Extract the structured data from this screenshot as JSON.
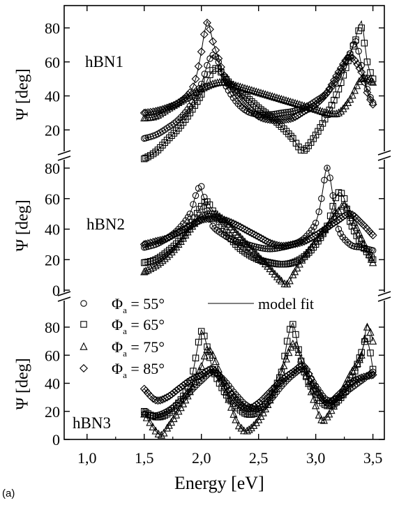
{
  "panel_letter": "(a)",
  "x_axis_label": "Energy [eV]",
  "y_axis_label": "Ψ [deg]",
  "legend": [
    {
      "symbol": "circle",
      "prefix": "Φ",
      "sub": "a",
      "suffix": " = 55°"
    },
    {
      "symbol": "square",
      "prefix": "Φ",
      "sub": "a",
      "suffix": " = 65°"
    },
    {
      "symbol": "triangle",
      "prefix": "Φ",
      "sub": "a",
      "suffix": " = 75°"
    },
    {
      "symbol": "diamond",
      "prefix": "Φ",
      "sub": "a",
      "suffix": " = 85°"
    }
  ],
  "fit_label": "model fit",
  "chart_data": [
    {
      "type": "scatter",
      "panel_label": "hBN1",
      "xlabel": "",
      "ylabel": "Ψ [deg]",
      "xlim": [
        0.8,
        3.6
      ],
      "ylim": [
        0,
        90
      ],
      "yticks": [
        20,
        40,
        60,
        80
      ],
      "series": [
        {
          "name": "Φa = 55°",
          "marker": "circle",
          "x": [
            1.5,
            1.6,
            1.7,
            1.8,
            1.9,
            2.0,
            2.05,
            2.1,
            2.15,
            2.2,
            2.3,
            2.4,
            2.5,
            2.6,
            2.7,
            2.8,
            2.9,
            3.0,
            3.1,
            3.2,
            3.3,
            3.35,
            3.4,
            3.45,
            3.5
          ],
          "y": [
            15,
            17,
            21,
            26,
            34,
            47,
            58,
            64,
            60,
            48,
            37,
            31,
            29,
            29,
            30,
            31,
            33,
            37,
            42,
            52,
            65,
            72,
            58,
            44,
            36
          ]
        },
        {
          "name": "Φa = 65°",
          "marker": "square",
          "x": [
            1.5,
            1.6,
            1.7,
            1.8,
            1.9,
            2.0,
            2.05,
            2.1,
            2.15,
            2.2,
            2.3,
            2.4,
            2.5,
            2.6,
            2.7,
            2.8,
            2.85,
            2.9,
            3.0,
            3.1,
            3.2,
            3.3,
            3.35,
            3.4,
            3.45,
            3.5
          ],
          "y": [
            3,
            7,
            14,
            21,
            30,
            41,
            49,
            55,
            56,
            51,
            44,
            39,
            33,
            28,
            22,
            15,
            10,
            8,
            17,
            29,
            44,
            64,
            73,
            80,
            60,
            50
          ],
          "fit": [
            3,
            7,
            14,
            21,
            30,
            41,
            49,
            55,
            56,
            51,
            44,
            39,
            33,
            28,
            22,
            15,
            10,
            8,
            17,
            29,
            44,
            64,
            74,
            84,
            60,
            49
          ]
        },
        {
          "name": "Φa = 75°",
          "marker": "triangle",
          "x": [
            1.5,
            1.6,
            1.7,
            1.8,
            1.9,
            2.0,
            2.1,
            2.2,
            2.3,
            2.4,
            2.5,
            2.6,
            2.7,
            2.8,
            2.9,
            3.0,
            3.1,
            3.2,
            3.3,
            3.4,
            3.5
          ],
          "y": [
            27,
            28,
            32,
            36,
            40,
            44,
            47,
            48,
            46,
            44,
            42,
            40,
            38,
            36,
            34,
            32,
            30,
            30,
            38,
            50,
            48
          ]
        },
        {
          "name": "Φa = 85°",
          "marker": "diamond",
          "x": [
            1.5,
            1.6,
            1.7,
            1.8,
            1.9,
            1.95,
            2.0,
            2.05,
            2.1,
            2.15,
            2.2,
            2.3,
            2.4,
            2.5,
            2.6,
            2.7,
            2.8,
            2.9,
            3.0,
            3.1,
            3.2,
            3.3,
            3.4,
            3.45,
            3.5
          ],
          "y": [
            30,
            31,
            33,
            36,
            42,
            50,
            66,
            83,
            72,
            62,
            52,
            42,
            34,
            28,
            26,
            26,
            27,
            31,
            35,
            42,
            54,
            63,
            54,
            42,
            35
          ],
          "fit": [
            30,
            31,
            33,
            36,
            42,
            50,
            66,
            84,
            72,
            62,
            52,
            42,
            34,
            28,
            26,
            26,
            27,
            31,
            35,
            42,
            54,
            63,
            54,
            42,
            35
          ]
        }
      ]
    },
    {
      "type": "scatter",
      "panel_label": "hBN2",
      "xlabel": "",
      "ylabel": "Ψ [deg]",
      "xlim": [
        0.8,
        3.6
      ],
      "ylim": [
        0,
        90
      ],
      "yticks": [
        0,
        20,
        40,
        60,
        80
      ],
      "series": [
        {
          "name": "Φa = 55°",
          "marker": "circle",
          "x": [
            1.5,
            1.6,
            1.7,
            1.8,
            1.9,
            1.95,
            2.0,
            2.05,
            2.1,
            2.2,
            2.3,
            2.4,
            2.5,
            2.6,
            2.7,
            2.8,
            2.9,
            3.0,
            3.05,
            3.1,
            3.15,
            3.2,
            3.3,
            3.4,
            3.5
          ],
          "y": [
            28,
            30,
            34,
            40,
            50,
            62,
            68,
            52,
            42,
            36,
            32,
            30,
            28,
            27,
            28,
            30,
            34,
            44,
            60,
            80,
            62,
            40,
            30,
            28,
            26
          ],
          "fit": [
            28,
            30,
            34,
            40,
            50,
            62,
            66,
            52,
            42,
            36,
            32,
            30,
            28,
            27,
            28,
            30,
            34,
            44,
            60,
            81,
            62,
            40,
            30,
            28,
            26
          ]
        },
        {
          "name": "Φa = 65°",
          "marker": "square",
          "x": [
            1.5,
            1.6,
            1.7,
            1.8,
            1.9,
            2.0,
            2.05,
            2.1,
            2.2,
            2.3,
            2.4,
            2.5,
            2.6,
            2.7,
            2.8,
            2.9,
            3.0,
            3.1,
            3.15,
            3.2,
            3.25,
            3.3,
            3.4,
            3.5
          ],
          "y": [
            18,
            20,
            25,
            32,
            42,
            55,
            58,
            52,
            40,
            30,
            24,
            20,
            18,
            17,
            18,
            22,
            30,
            42,
            55,
            64,
            60,
            45,
            30,
            20
          ]
        },
        {
          "name": "Φa = 75°",
          "marker": "triangle",
          "x": [
            1.5,
            1.6,
            1.7,
            1.8,
            1.9,
            2.0,
            2.1,
            2.2,
            2.3,
            2.4,
            2.5,
            2.6,
            2.7,
            2.75,
            2.8,
            2.9,
            3.0,
            3.1,
            3.2,
            3.25,
            3.3,
            3.4,
            3.5
          ],
          "y": [
            12,
            16,
            22,
            30,
            40,
            48,
            50,
            46,
            38,
            30,
            22,
            14,
            6,
            4,
            10,
            22,
            32,
            42,
            52,
            56,
            50,
            34,
            18
          ],
          "fit": [
            12,
            16,
            22,
            30,
            40,
            48,
            50,
            46,
            38,
            30,
            22,
            14,
            6,
            3,
            10,
            22,
            32,
            42,
            52,
            57,
            50,
            34,
            18
          ]
        },
        {
          "name": "Φa = 85°",
          "marker": "diamond",
          "x": [
            1.5,
            1.6,
            1.7,
            1.8,
            1.9,
            2.0,
            2.1,
            2.2,
            2.3,
            2.4,
            2.5,
            2.6,
            2.7,
            2.8,
            2.9,
            3.0,
            3.1,
            3.2,
            3.3,
            3.4,
            3.5
          ],
          "y": [
            30,
            32,
            34,
            38,
            42,
            46,
            47,
            46,
            43,
            39,
            35,
            31,
            29,
            30,
            32,
            36,
            41,
            46,
            50,
            44,
            36
          ]
        }
      ]
    },
    {
      "type": "scatter",
      "panel_label": "hBN3",
      "xlabel": "Energy [eV]",
      "ylabel": "Ψ [deg]",
      "xlim": [
        0.8,
        3.6
      ],
      "ylim": [
        0,
        90
      ],
      "yticks": [
        0,
        20,
        40,
        60,
        80
      ],
      "xticks": [
        "1,0",
        "1,5",
        "2,0",
        "2,5",
        "3,0",
        "3,5"
      ],
      "series": [
        {
          "name": "Φa = 55°",
          "marker": "circle",
          "x": [
            1.5,
            1.6,
            1.7,
            1.8,
            1.9,
            2.0,
            2.1,
            2.2,
            2.3,
            2.4,
            2.5,
            2.6,
            2.7,
            2.8,
            2.9,
            3.0,
            3.1,
            3.2,
            3.3,
            3.4,
            3.5
          ],
          "y": [
            18,
            17,
            20,
            26,
            34,
            42,
            48,
            42,
            32,
            24,
            22,
            28,
            38,
            46,
            50,
            38,
            28,
            30,
            36,
            42,
            48
          ]
        },
        {
          "name": "Φa = 65°",
          "marker": "square",
          "x": [
            1.5,
            1.6,
            1.7,
            1.8,
            1.9,
            1.95,
            2.0,
            2.05,
            2.1,
            2.2,
            2.3,
            2.4,
            2.5,
            2.6,
            2.7,
            2.75,
            2.8,
            2.85,
            2.9,
            3.0,
            3.1,
            3.2,
            3.3,
            3.4,
            3.45,
            3.5
          ],
          "y": [
            20,
            16,
            18,
            26,
            40,
            58,
            77,
            66,
            50,
            34,
            24,
            18,
            20,
            30,
            48,
            70,
            82,
            64,
            48,
            32,
            24,
            28,
            40,
            62,
            72,
            50
          ],
          "fit": [
            20,
            16,
            18,
            26,
            40,
            58,
            78,
            66,
            50,
            34,
            24,
            18,
            20,
            30,
            48,
            70,
            83,
            64,
            48,
            32,
            24,
            28,
            40,
            62,
            72,
            50
          ]
        },
        {
          "name": "Φa = 75°",
          "marker": "triangle",
          "x": [
            1.5,
            1.55,
            1.6,
            1.65,
            1.7,
            1.8,
            1.9,
            2.0,
            2.05,
            2.1,
            2.15,
            2.2,
            2.3,
            2.35,
            2.4,
            2.5,
            2.6,
            2.7,
            2.8,
            2.85,
            2.9,
            3.0,
            3.05,
            3.1,
            3.2,
            3.3,
            3.4,
            3.45,
            3.5
          ],
          "y": [
            18,
            12,
            6,
            3,
            8,
            20,
            34,
            52,
            64,
            60,
            50,
            38,
            14,
            8,
            6,
            14,
            28,
            48,
            68,
            62,
            50,
            24,
            14,
            16,
            30,
            46,
            60,
            80,
            70
          ],
          "fit": [
            18,
            12,
            6,
            3,
            8,
            20,
            34,
            52,
            64,
            60,
            50,
            38,
            14,
            8,
            6,
            14,
            28,
            48,
            68,
            62,
            50,
            24,
            14,
            16,
            30,
            46,
            60,
            82,
            70
          ]
        },
        {
          "name": "Φa = 85°",
          "marker": "diamond",
          "x": [
            1.5,
            1.6,
            1.7,
            1.8,
            1.9,
            2.0,
            2.1,
            2.2,
            2.3,
            2.4,
            2.5,
            2.6,
            2.7,
            2.8,
            2.9,
            3.0,
            3.1,
            3.2,
            3.3,
            3.4,
            3.5
          ],
          "y": [
            36,
            28,
            30,
            36,
            42,
            46,
            50,
            40,
            28,
            22,
            26,
            34,
            42,
            48,
            52,
            36,
            26,
            32,
            40,
            44,
            46
          ]
        }
      ]
    }
  ]
}
